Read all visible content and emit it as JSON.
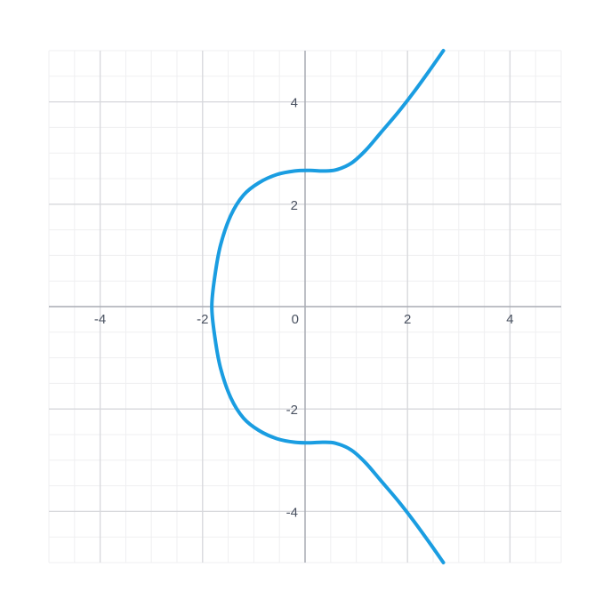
{
  "chart_data": {
    "type": "line",
    "title": "",
    "xlabel": "",
    "ylabel": "",
    "xlim": [
      -5,
      5
    ],
    "ylim": [
      -5,
      5
    ],
    "grid": true,
    "major_step": 2,
    "minor_step": 0.5,
    "x_ticks": [
      {
        "value": -4,
        "label": "-4"
      },
      {
        "value": -2,
        "label": "-2"
      },
      {
        "value": 0,
        "label": "0"
      },
      {
        "value": 2,
        "label": "2"
      },
      {
        "value": 4,
        "label": "4"
      }
    ],
    "y_ticks": [
      {
        "value": 4,
        "label": "4"
      },
      {
        "value": 2,
        "label": "2"
      },
      {
        "value": -2,
        "label": "-2"
      },
      {
        "value": -4,
        "label": "-4"
      }
    ],
    "series": [
      {
        "color": "#1a9de1",
        "points": [
          [
            2.7,
            5.0
          ],
          [
            2.42,
            4.6
          ],
          [
            2.13,
            4.2
          ],
          [
            1.82,
            3.8
          ],
          [
            1.48,
            3.4
          ],
          [
            1.18,
            3.05
          ],
          [
            0.9,
            2.8
          ],
          [
            0.6,
            2.67
          ],
          [
            0.35,
            2.65
          ],
          [
            0.1,
            2.66
          ],
          [
            -0.2,
            2.65
          ],
          [
            -0.55,
            2.58
          ],
          [
            -0.9,
            2.42
          ],
          [
            -1.2,
            2.18
          ],
          [
            -1.45,
            1.78
          ],
          [
            -1.65,
            1.2
          ],
          [
            -1.76,
            0.6
          ],
          [
            -1.82,
            0.0
          ],
          [
            -1.76,
            -0.6
          ],
          [
            -1.65,
            -1.2
          ],
          [
            -1.45,
            -1.78
          ],
          [
            -1.2,
            -2.18
          ],
          [
            -0.9,
            -2.42
          ],
          [
            -0.55,
            -2.58
          ],
          [
            -0.2,
            -2.65
          ],
          [
            0.1,
            -2.66
          ],
          [
            0.35,
            -2.65
          ],
          [
            0.6,
            -2.67
          ],
          [
            0.9,
            -2.8
          ],
          [
            1.18,
            -3.05
          ],
          [
            1.48,
            -3.4
          ],
          [
            1.82,
            -3.8
          ],
          [
            2.13,
            -4.2
          ],
          [
            2.42,
            -4.6
          ],
          [
            2.7,
            -5.0
          ]
        ]
      }
    ]
  },
  "colors": {
    "minor_grid": "#efeff1",
    "major_grid": "#d7d8dc",
    "axis": "#a9acb4",
    "curve": "#1a9de1",
    "tick_text": "#4a5261"
  }
}
